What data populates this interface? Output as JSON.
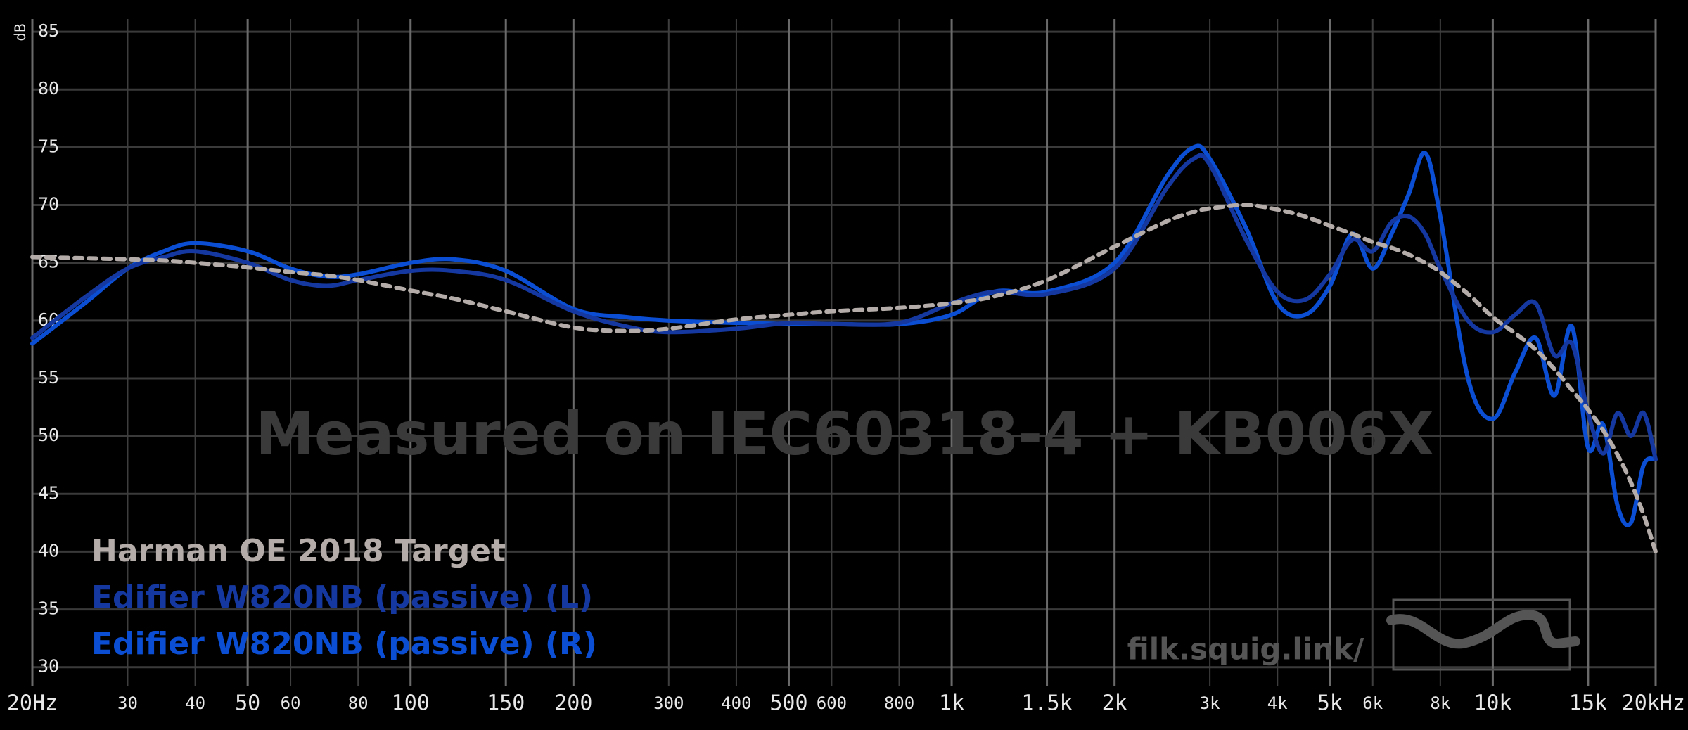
{
  "chart_data": {
    "type": "line",
    "y_label": "dB",
    "annotations": [
      "Measured on IEC60318-4 + KB006X",
      "filk.squig.link/"
    ],
    "x_scale": "log",
    "xlim": [
      20,
      20000
    ],
    "ylim": [
      28.4,
      86.1
    ],
    "grid": true,
    "legend": "lower left",
    "xticks": [
      {
        "value": 20,
        "label": "20Hz"
      },
      30,
      40,
      50,
      60,
      80,
      100,
      150,
      200,
      300,
      400,
      500,
      600,
      800,
      {
        "value": 1000,
        "label": "1k"
      },
      {
        "value": 1500,
        "label": "1.5k"
      },
      {
        "value": 2000,
        "label": "2k"
      },
      {
        "value": 3000,
        "label": "3k"
      },
      {
        "value": 4000,
        "label": "4k"
      },
      {
        "value": 5000,
        "label": "5k"
      },
      {
        "value": 6000,
        "label": "6k"
      },
      {
        "value": 8000,
        "label": "8k"
      },
      {
        "value": 10000,
        "label": "10k"
      },
      {
        "value": 15000,
        "label": "15k"
      },
      {
        "value": 20000,
        "label": "20kHz"
      }
    ],
    "yticks": [
      30,
      35,
      40,
      45,
      50,
      55,
      60,
      65,
      70,
      75,
      80,
      85
    ],
    "x": [
      20,
      25,
      30,
      35,
      40,
      50,
      60,
      70,
      80,
      100,
      120,
      150,
      200,
      250,
      300,
      400,
      500,
      600,
      800,
      1000,
      1200,
      1500,
      2000,
      2500,
      2800,
      3000,
      3500,
      4000,
      4500,
      5000,
      5500,
      6000,
      6500,
      7000,
      7500,
      8000,
      9000,
      10000,
      11000,
      12000,
      13000,
      14000,
      15000,
      16000,
      17000,
      18000,
      19000,
      20000
    ],
    "series": [
      {
        "name": "Harman OE 2018 Target",
        "color": "#b3aca8",
        "style": "dashed",
        "values": [
          65.5,
          65.4,
          65.3,
          65.2,
          65,
          64.6,
          64.2,
          63.9,
          63.5,
          62.6,
          61.9,
          60.8,
          59.4,
          59.1,
          59.3,
          60.1,
          60.5,
          60.8,
          61.1,
          61.5,
          62.1,
          63.5,
          66.4,
          68.6,
          69.4,
          69.7,
          70,
          69.6,
          69,
          68.2,
          67.5,
          66.8,
          66.3,
          65.7,
          65,
          64.2,
          62.3,
          60.3,
          58.9,
          57.5,
          55.8,
          54,
          52.3,
          50.5,
          48.4,
          46,
          43.2,
          40
        ]
      },
      {
        "name": "Edifier W820NB (passive) (L)",
        "color": "#1538a0",
        "style": "solid",
        "values": [
          58.5,
          62,
          64.5,
          65.5,
          66,
          65,
          63.5,
          63,
          63.5,
          64.3,
          64.3,
          63.5,
          60.8,
          59.5,
          59,
          59.3,
          59.8,
          59.7,
          59.8,
          61.5,
          62.5,
          62.3,
          64.5,
          71.5,
          74,
          73.5,
          67,
          62.5,
          61.8,
          64,
          67,
          66,
          68.5,
          69,
          67.5,
          64.5,
          60,
          59,
          60.5,
          61.5,
          57,
          58,
          52,
          48.5,
          52,
          50,
          52,
          48
        ]
      },
      {
        "name": "Edifier W820NB (passive) (R)",
        "color": "#0b4ed4",
        "style": "solid",
        "values": [
          58,
          61.5,
          64.5,
          66,
          66.7,
          66,
          64.5,
          63.8,
          64,
          65,
          65.3,
          64.3,
          61,
          60.3,
          60,
          59.8,
          59.7,
          59.7,
          59.7,
          60.5,
          62.5,
          62.5,
          65,
          72.5,
          75,
          74,
          68,
          61.5,
          60.5,
          63,
          67.5,
          64.5,
          67.5,
          71,
          74.5,
          69,
          55,
          51.5,
          55.5,
          58.5,
          53.5,
          59.5,
          49,
          51,
          44,
          42.5,
          47.5,
          48
        ]
      }
    ]
  }
}
